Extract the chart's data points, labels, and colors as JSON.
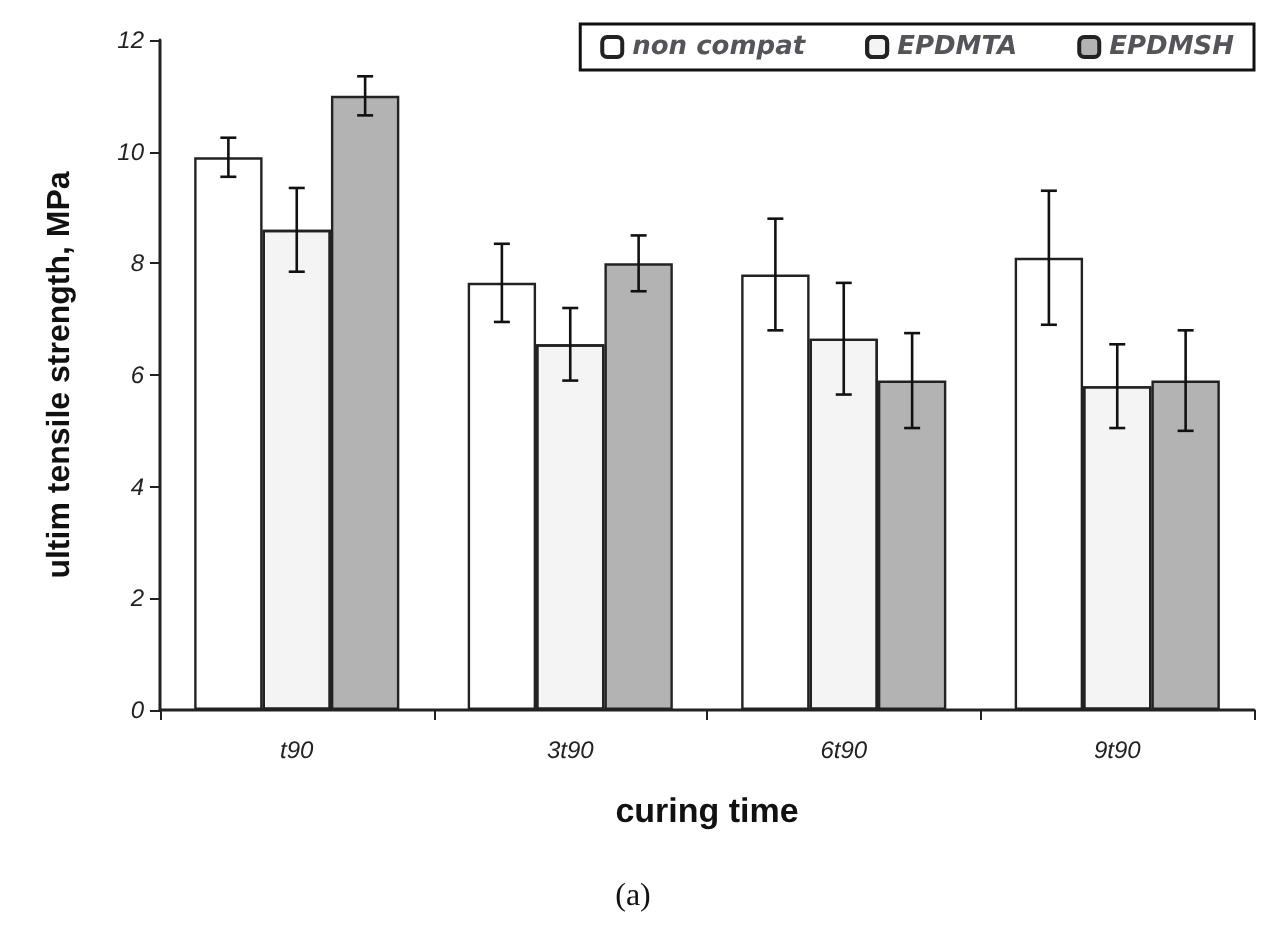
{
  "chart_data": {
    "type": "bar",
    "xlabel": "curing time",
    "ylabel": "ultim tensile strength, MPa",
    "categories": [
      "t90",
      "3t90",
      "6t90",
      "9t90"
    ],
    "series": [
      {
        "name": "non compat",
        "color": "#ffffff",
        "values": [
          9.9,
          7.65,
          7.8,
          8.1
        ],
        "errors": [
          0.35,
          0.7,
          1.0,
          1.2
        ]
      },
      {
        "name": "EPDMTA",
        "color": "#f4f4f4",
        "values": [
          8.6,
          6.55,
          6.65,
          5.8
        ],
        "errors": [
          0.75,
          0.65,
          1.0,
          0.75
        ]
      },
      {
        "name": "EPDMSH",
        "color": "#b3b3b3",
        "values": [
          11.0,
          8.0,
          5.9,
          5.9
        ],
        "errors": [
          0.35,
          0.5,
          0.85,
          0.9
        ]
      }
    ],
    "ylim": [
      0,
      12
    ],
    "yticks": [
      0,
      2,
      4,
      6,
      8,
      10,
      12
    ],
    "grid": false,
    "legend": "top right",
    "annotations": [
      "(a)"
    ]
  }
}
